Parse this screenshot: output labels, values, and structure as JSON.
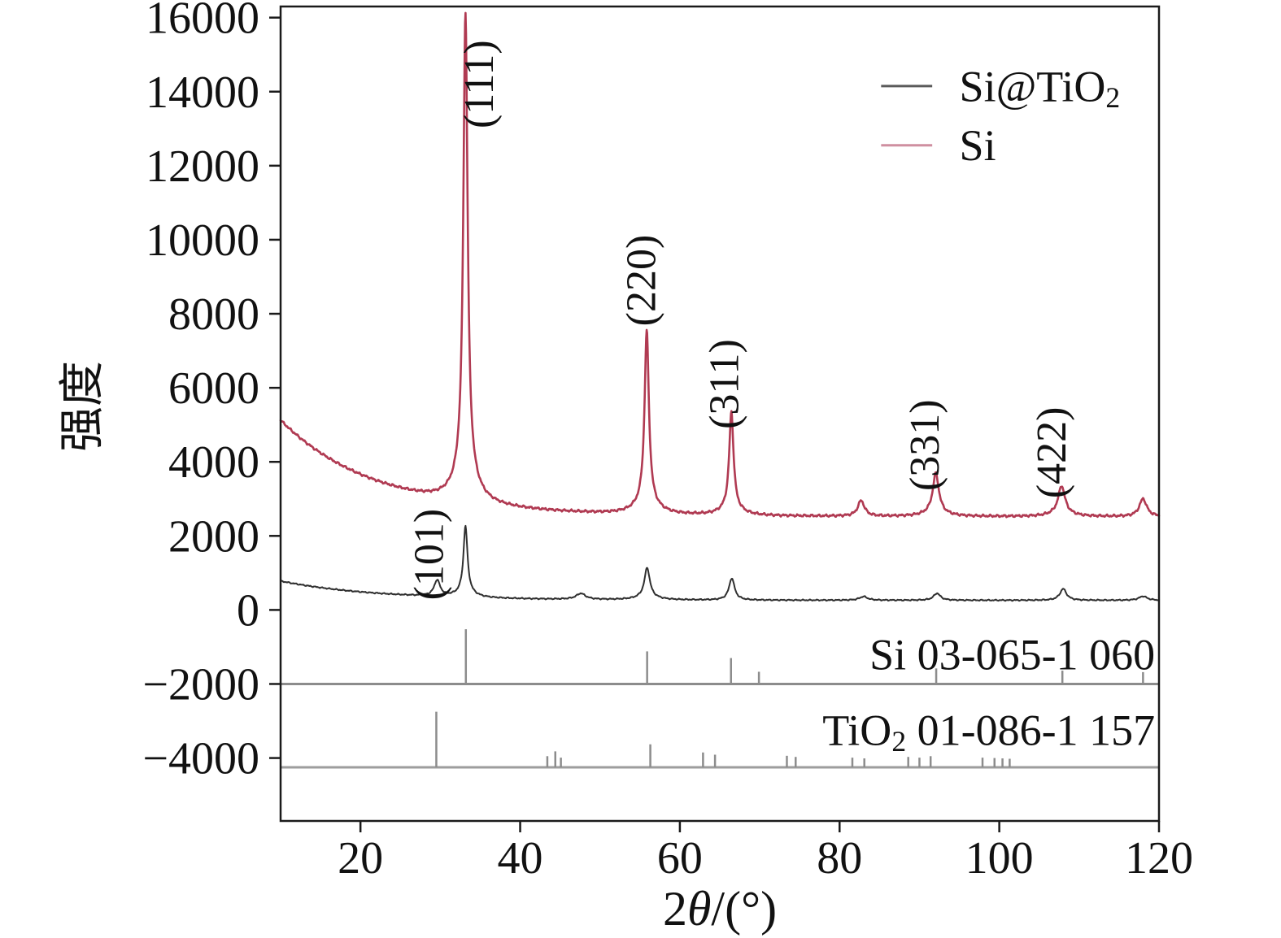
{
  "figure": {
    "background": "#ffffff"
  },
  "chart_data": {
    "type": "line",
    "title": "",
    "xlabel_parts": [
      {
        "t": "2"
      },
      {
        "t": "θ",
        "italic": true
      },
      {
        "t": "/(°)"
      }
    ],
    "ylabel": "强度",
    "xlim": [
      10,
      120
    ],
    "ylim": [
      -5700,
      16300
    ],
    "x_ticks": [
      20,
      40,
      60,
      80,
      100,
      120
    ],
    "y_ticks": [
      -4000,
      -2000,
      0,
      2000,
      4000,
      6000,
      8000,
      10000,
      12000,
      14000,
      16000
    ],
    "axis_color": "#1a1a1a",
    "grid": false,
    "legend_position": "top-right",
    "series": [
      {
        "id": "si-tio2",
        "name": "Si@TiO2",
        "legend_parts": [
          {
            "t": "Si@TiO"
          },
          {
            "t": "2",
            "sub": true
          }
        ],
        "color": "#2f2f2f",
        "legend_line_color": "#5a5a5a",
        "line_width": 2,
        "noise_amp": 20,
        "seed": 3.1,
        "background": {
          "base": 260,
          "amp": 520,
          "decay": 12
        },
        "peaks": [
          [
            29.6,
            430,
            0.45
          ],
          [
            33.15,
            1800,
            0.3
          ],
          [
            33.15,
            130,
            1.3
          ],
          [
            47.6,
            160,
            0.7
          ],
          [
            55.9,
            790,
            0.4
          ],
          [
            55.9,
            80,
            1.5
          ],
          [
            66.5,
            590,
            0.42
          ],
          [
            83.0,
            100,
            0.6
          ],
          [
            92.2,
            190,
            0.5
          ],
          [
            108.0,
            310,
            0.5
          ],
          [
            118.0,
            110,
            0.6
          ]
        ]
      },
      {
        "id": "si",
        "name": "Si",
        "legend_parts": [
          {
            "t": "Si"
          }
        ],
        "color": "#b03a52",
        "legend_line_color": "#cf8fa0",
        "line_width": 2.6,
        "noise_amp": 38,
        "seed": 7.7,
        "background": {
          "base": 2520,
          "amp": 2600,
          "decay": 12
        },
        "peaks": [
          [
            33.15,
            12500,
            0.32
          ],
          [
            33.15,
            750,
            1.6
          ],
          [
            55.85,
            4650,
            0.32
          ],
          [
            55.85,
            320,
            1.6
          ],
          [
            66.45,
            2600,
            0.32
          ],
          [
            66.45,
            200,
            1.4
          ],
          [
            82.7,
            420,
            0.5
          ],
          [
            92.05,
            1050,
            0.45
          ],
          [
            92.05,
            120,
            1.5
          ],
          [
            107.8,
            730,
            0.5
          ],
          [
            107.8,
            100,
            1.5
          ],
          [
            118.0,
            480,
            0.55
          ]
        ]
      }
    ],
    "peak_annotations": [
      {
        "label": "(111)",
        "x": 36.6,
        "y": 14200
      },
      {
        "label": "(220)",
        "x": 56.9,
        "y": 8900
      },
      {
        "label": "(311)",
        "x": 67.3,
        "y": 6100
      },
      {
        "label": "(331)",
        "x": 92.4,
        "y": 4450
      },
      {
        "label": "(422)",
        "x": 108.3,
        "y": 4250
      },
      {
        "label": "(101)",
        "x": 30.3,
        "y": 1500
      }
    ],
    "reference_patterns": [
      {
        "id": "si-ref",
        "label_parts": [
          {
            "t": "Si 03-065-1 060"
          }
        ],
        "baseline": -2000,
        "baseline_color": "#8c8c8c",
        "stick_color": "#8c8c8c",
        "label_x": 119.5,
        "label_y": -1600,
        "sticks": [
          [
            33.2,
            1480
          ],
          [
            55.9,
            880
          ],
          [
            66.4,
            700
          ],
          [
            69.9,
            330
          ],
          [
            92.1,
            420
          ],
          [
            107.9,
            360
          ],
          [
            118.0,
            320
          ]
        ]
      },
      {
        "id": "tio2-ref",
        "label_parts": [
          {
            "t": "TiO"
          },
          {
            "t": "2",
            "sub": true
          },
          {
            "t": " 01-086-1 157"
          }
        ],
        "baseline": -4250,
        "baseline_color": "#9d9d9d",
        "stick_color": "#8c8c8c",
        "label_x": 119.5,
        "label_y": -3650,
        "sticks": [
          [
            29.5,
            1500
          ],
          [
            43.4,
            300
          ],
          [
            44.4,
            430
          ],
          [
            45.1,
            260
          ],
          [
            56.3,
            620
          ],
          [
            62.9,
            400
          ],
          [
            64.4,
            340
          ],
          [
            73.4,
            310
          ],
          [
            74.5,
            280
          ],
          [
            81.6,
            260
          ],
          [
            83.1,
            240
          ],
          [
            88.6,
            280
          ],
          [
            90.0,
            260
          ],
          [
            91.4,
            300
          ],
          [
            97.9,
            260
          ],
          [
            99.4,
            250
          ],
          [
            100.4,
            240
          ],
          [
            101.3,
            230
          ]
        ]
      }
    ],
    "legend": {
      "line_x": [
        85.2,
        91.6
      ],
      "text_x": 95.0,
      "rows_y": [
        14150,
        12550
      ],
      "font_size": 54
    }
  }
}
